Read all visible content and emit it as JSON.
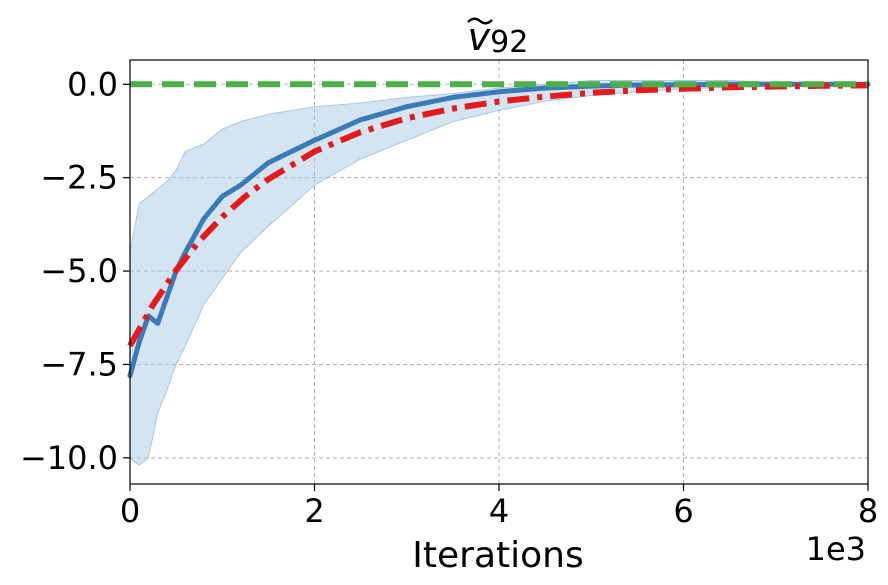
{
  "chart_data": {
    "type": "line",
    "title": "ṽ92",
    "title_base": "v",
    "title_sub": "92",
    "xlabel": "Iterations",
    "ylabel": "",
    "x_offset_label": "1e3",
    "xlim": [
      0,
      8
    ],
    "ylim": [
      -10.7,
      0.65
    ],
    "xticks": [
      0,
      2,
      4,
      6,
      8
    ],
    "xtick_labels": [
      "0",
      "2",
      "4",
      "6",
      "8"
    ],
    "yticks": [
      0.0,
      -2.5,
      -5.0,
      -7.5,
      -10.0
    ],
    "ytick_labels": [
      "0.0",
      "−2.5",
      "−5.0",
      "−7.5",
      "−10.0"
    ],
    "grid": true,
    "colors": {
      "mean": "#3a7bb8",
      "band": "#a9c9e3",
      "fit": "#e41a1c",
      "target": "#4daf4a",
      "grid": "#b0b0b0"
    },
    "series": [
      {
        "style": "solid-blue",
        "x": [
          0,
          0.1,
          0.2,
          0.3,
          0.4,
          0.5,
          0.6,
          0.8,
          1.0,
          1.2,
          1.5,
          2.0,
          2.5,
          3.0,
          3.5,
          4.0,
          4.5,
          5.0,
          5.5,
          6.0,
          6.5,
          7.0,
          7.5,
          8.0
        ],
        "y": [
          -7.8,
          -6.9,
          -6.2,
          -6.4,
          -5.7,
          -5.0,
          -4.5,
          -3.6,
          -3.0,
          -2.7,
          -2.1,
          -1.5,
          -0.95,
          -0.6,
          -0.35,
          -0.2,
          -0.1,
          -0.05,
          -0.02,
          -0.01,
          0.0,
          0.0,
          0.0,
          0.0
        ]
      },
      {
        "style": "band",
        "x": [
          0,
          0.1,
          0.2,
          0.3,
          0.4,
          0.5,
          0.6,
          0.8,
          1.0,
          1.2,
          1.5,
          2.0,
          2.5,
          3.0,
          3.5,
          4.0,
          4.5,
          5.0,
          5.5,
          6.0,
          6.5,
          7.0,
          7.5,
          8.0
        ],
        "upper": [
          -4.5,
          -3.2,
          -3.0,
          -2.8,
          -2.6,
          -2.3,
          -1.8,
          -1.6,
          -1.2,
          -1.0,
          -0.8,
          -0.6,
          -0.5,
          -0.35,
          -0.25,
          -0.1,
          0.0,
          0.1,
          0.1,
          0.1,
          0.1,
          0.05,
          0.05,
          0.05
        ],
        "lower": [
          -10.0,
          -10.2,
          -10.0,
          -8.8,
          -8.2,
          -7.5,
          -7.0,
          -5.9,
          -5.2,
          -4.5,
          -3.8,
          -2.7,
          -2.0,
          -1.5,
          -1.0,
          -0.7,
          -0.45,
          -0.3,
          -0.2,
          -0.12,
          -0.08,
          -0.05,
          -0.05,
          -0.05
        ]
      },
      {
        "style": "dashdot-red",
        "x": [
          0,
          0.25,
          0.5,
          0.75,
          1.0,
          1.25,
          1.5,
          2.0,
          2.5,
          3.0,
          3.5,
          4.0,
          4.5,
          5.0,
          5.5,
          6.0,
          6.5,
          7.0,
          7.5,
          8.0
        ],
        "y": [
          -7.0,
          -5.9,
          -4.98,
          -4.2,
          -3.55,
          -3.0,
          -2.54,
          -1.8,
          -1.28,
          -0.91,
          -0.65,
          -0.46,
          -0.33,
          -0.23,
          -0.16,
          -0.12,
          -0.08,
          -0.06,
          -0.04,
          -0.03
        ]
      },
      {
        "style": "dashed-green",
        "x": [
          0,
          8
        ],
        "y": [
          0.0,
          0.0
        ]
      }
    ]
  }
}
